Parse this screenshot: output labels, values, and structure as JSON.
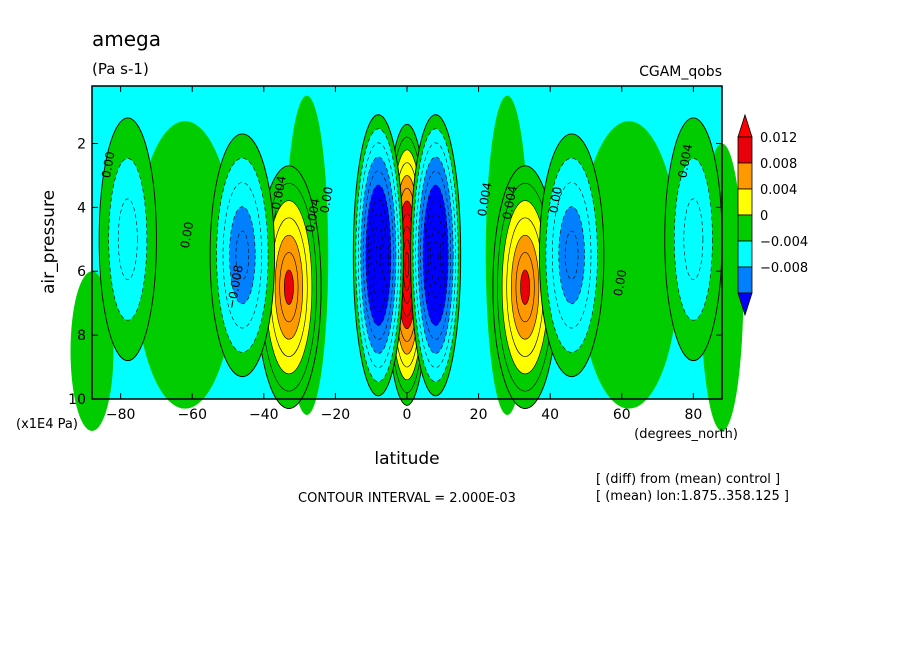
{
  "chart_data": {
    "type": "heatmap",
    "title": "amega",
    "units": "(Pa s-1)",
    "dataset": "CGAM_qobs",
    "xlabel": "latitude",
    "x_units": "(degrees_north)",
    "ylabel": "air_pressure",
    "y_units": "(x1E4 Pa)",
    "x_ticks": [
      "-80",
      "-60",
      "-40",
      "-20",
      "0",
      "20",
      "40",
      "60",
      "80"
    ],
    "y_ticks": [
      "2",
      "4",
      "6",
      "8",
      "10"
    ],
    "xlim": [
      -88,
      88
    ],
    "ylim": [
      10,
      0.2
    ],
    "contour_interval_text": "CONTOUR INTERVAL = 2.000E-03",
    "note_lines": [
      "[ (diff) from (mean) control ]",
      "[ (mean) lon:1.875..358.125 ]"
    ],
    "colorbar": {
      "labels": [
        "0.012",
        "0.008",
        "0.004",
        "0",
        "−0.004",
        "−0.008"
      ],
      "colors": [
        "#e8000b",
        "#ff9900",
        "#ffff00",
        "#00cc00",
        "#00ffff",
        "#0080ff",
        "#0000ff",
        "#ff0000"
      ]
    },
    "field": {
      "background": 0.0,
      "features": [
        {
          "lat": 0,
          "p": 5.8,
          "value": 0.02
        },
        {
          "lat": -8,
          "p": 5.5,
          "value": -0.018
        },
        {
          "lat": 8,
          "p": 5.5,
          "value": -0.018
        },
        {
          "lat": -33,
          "p": 6.5,
          "value": 0.012
        },
        {
          "lat": 33,
          "p": 6.5,
          "value": 0.012
        },
        {
          "lat": -46,
          "p": 5.5,
          "value": -0.008
        },
        {
          "lat": 46,
          "p": 5.5,
          "value": -0.008
        },
        {
          "lat": -78,
          "p": 5.0,
          "value": -0.003
        },
        {
          "lat": 80,
          "p": 5.0,
          "value": -0.003
        }
      ]
    },
    "contour_labels": [
      "0.00",
      "0.00",
      "-0.008",
      "-0.004",
      "0.004",
      "0.00",
      "0.004",
      "0.004",
      "0.00",
      "0.00",
      "0.004"
    ]
  }
}
